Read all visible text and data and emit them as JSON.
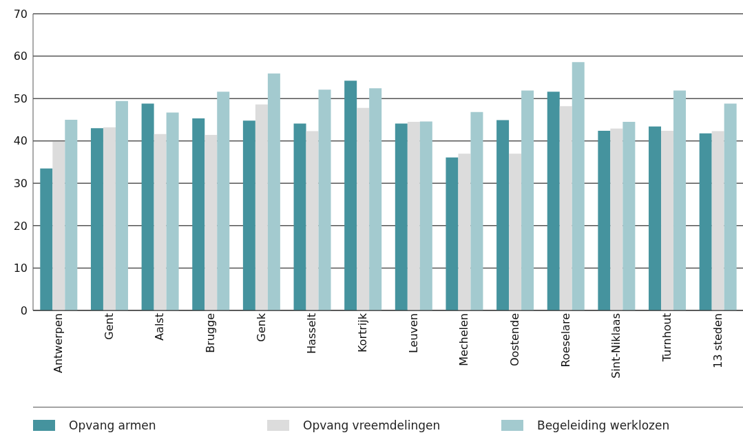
{
  "chart_data": {
    "type": "bar",
    "categories": [
      "Antwerpen",
      "Gent",
      "Aalst",
      "Brugge",
      "Genk",
      "Hasselt",
      "Kortrijk",
      "Leuven",
      "Mechelen",
      "Oostende",
      "Roeselare",
      "Sint-Niklaas",
      "Turnhout",
      "13 steden"
    ],
    "series": [
      {
        "name": "Opvang armen",
        "color": "#45939e",
        "values": [
          33.5,
          43.0,
          48.8,
          45.3,
          44.8,
          44.1,
          54.2,
          44.1,
          36.1,
          44.9,
          51.6,
          42.4,
          43.4,
          41.8
        ]
      },
      {
        "name": "Opvang vreemdelingen",
        "color": "#dcdcdc",
        "values": [
          39.8,
          43.2,
          41.6,
          41.4,
          48.6,
          42.3,
          47.8,
          44.5,
          37.0,
          37.0,
          48.2,
          42.9,
          42.4,
          42.3
        ]
      },
      {
        "name": "Begeleiding werklozen",
        "color": "#a3cacf",
        "values": [
          45.0,
          49.4,
          46.7,
          51.6,
          55.9,
          52.1,
          52.4,
          44.6,
          46.8,
          51.9,
          58.6,
          44.5,
          51.9,
          48.8
        ]
      }
    ],
    "ylim": [
      0,
      70
    ],
    "yticks": [
      0,
      10,
      20,
      30,
      40,
      50,
      60,
      70
    ],
    "grid": "y",
    "legend": "bottom"
  }
}
